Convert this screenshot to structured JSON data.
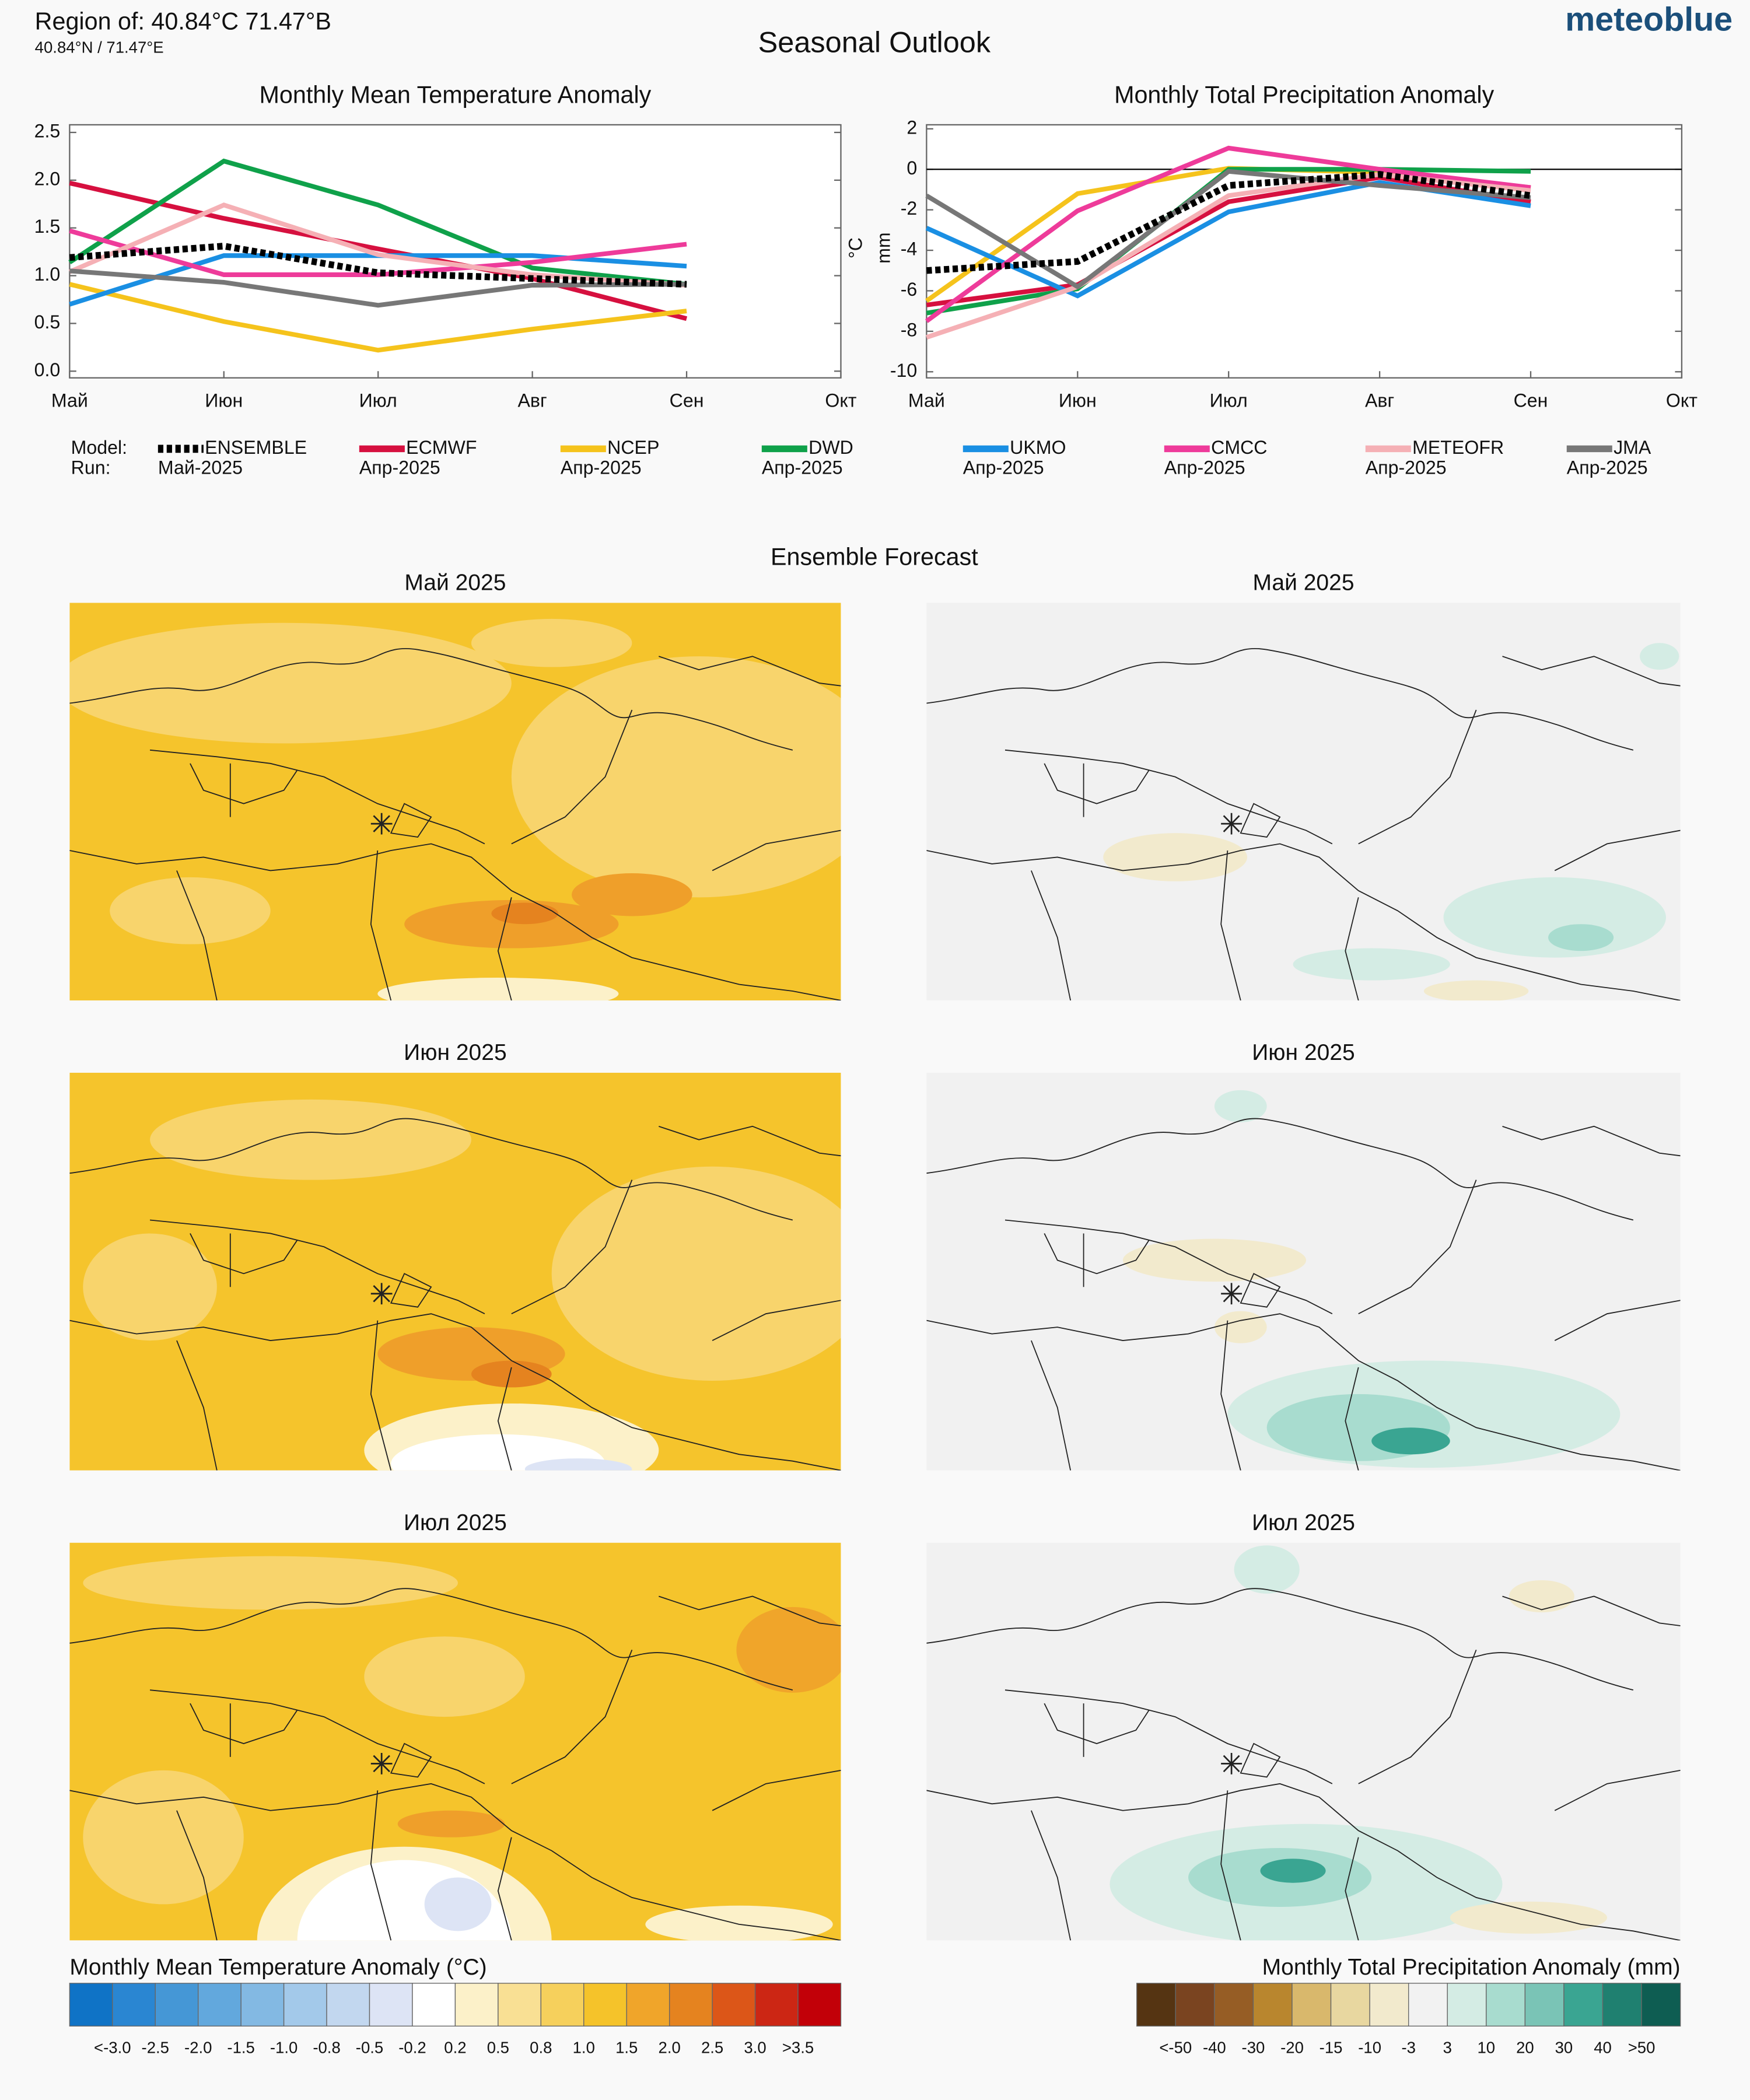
{
  "header": {
    "region": "Region of: 40.84°C 71.47°B",
    "coords": "40.84°N / 71.47°E",
    "title": "Seasonal Outlook",
    "brand": "meteoblue"
  },
  "legend": {
    "model_label": "Model:",
    "run_label": "Run:"
  },
  "chart_data": [
    {
      "type": "line",
      "title": "Monthly Mean Temperature Anomaly",
      "ylabel": "°C",
      "categories": [
        "Май",
        "Июн",
        "Июл",
        "Авг",
        "Сен",
        "Окт"
      ],
      "ylim": [
        -0.07,
        2.58
      ],
      "yticks": [
        {
          "value": 0,
          "label": "0.0"
        },
        0.5,
        {
          "value": 1,
          "label": "1.0"
        },
        1.5,
        {
          "value": 2,
          "label": "2.0"
        },
        2.5
      ],
      "grid": false,
      "series": [
        {
          "name": "ENSEMBLE",
          "run": "Май-2025",
          "color": "#000000",
          "dashed": true,
          "values": [
            1.19,
            1.31,
            1.03,
            0.97,
            0.91,
            null
          ]
        },
        {
          "name": "ECMWF",
          "run": "Апр-2025",
          "color": "#d6103f",
          "values": [
            1.97,
            1.6,
            1.28,
            0.97,
            0.55,
            null
          ]
        },
        {
          "name": "NCEP",
          "run": "Апр-2025",
          "color": "#f5c31c",
          "values": [
            0.91,
            0.52,
            0.22,
            0.44,
            0.63,
            null
          ]
        },
        {
          "name": "DWD",
          "run": "Апр-2025",
          "color": "#0fa14a",
          "values": [
            1.14,
            2.2,
            1.74,
            1.08,
            0.91,
            null
          ]
        },
        {
          "name": "UKMO",
          "run": "Апр-2025",
          "color": "#1a8fe3",
          "values": [
            0.7,
            1.21,
            1.21,
            1.21,
            1.1,
            null
          ]
        },
        {
          "name": "CMCC",
          "run": "Апр-2025",
          "color": "#ee3b9a",
          "values": [
            1.47,
            1.01,
            1.01,
            1.14,
            1.33,
            null
          ]
        },
        {
          "name": "METEOFR",
          "run": "Апр-2025",
          "color": "#f5b0b5",
          "values": [
            1.04,
            1.74,
            1.22,
            1.01,
            0.9,
            null
          ]
        },
        {
          "name": "JMA",
          "run": "Апр-2025",
          "color": "#777777",
          "values": [
            1.05,
            0.93,
            0.69,
            0.9,
            0.91,
            null
          ]
        }
      ]
    },
    {
      "type": "line",
      "title": "Monthly Total Precipitation Anomaly",
      "ylabel": "mm",
      "categories": [
        "Май",
        "Июн",
        "Июл",
        "Авг",
        "Сен",
        "Окт"
      ],
      "ylim": [
        -10.3,
        2.2
      ],
      "yticks": [
        2,
        0,
        -2,
        -4,
        -6,
        -8,
        -10
      ],
      "grid": false,
      "zero_line": true,
      "series": [
        {
          "name": "ENSEMBLE",
          "color": "#000000",
          "dashed": true,
          "values": [
            -5.0,
            -4.55,
            -0.8,
            -0.25,
            -1.3,
            null
          ]
        },
        {
          "name": "ECMWF",
          "color": "#d6103f",
          "values": [
            -6.7,
            -5.7,
            -1.6,
            -0.4,
            -1.6,
            null
          ]
        },
        {
          "name": "NCEP",
          "color": "#f5c31c",
          "values": [
            -6.5,
            -1.2,
            0.05,
            -0.15,
            -0.9,
            null
          ]
        },
        {
          "name": "DWD",
          "color": "#0fa14a",
          "values": [
            -7.1,
            -5.9,
            0,
            0,
            -0.1,
            null
          ]
        },
        {
          "name": "UKMO",
          "color": "#1a8fe3",
          "values": [
            -2.9,
            -6.25,
            -2.1,
            -0.65,
            -1.8,
            null
          ]
        },
        {
          "name": "CMCC",
          "color": "#ee3b9a",
          "values": [
            -7.5,
            -2.05,
            1.05,
            0,
            -0.9,
            null
          ]
        },
        {
          "name": "METEOFR",
          "color": "#f5b0b5",
          "values": [
            -8.3,
            -5.8,
            -1.3,
            -0.25,
            -1.05,
            null
          ]
        },
        {
          "name": "JMA",
          "color": "#777777",
          "values": [
            -1.3,
            -5.8,
            -0.1,
            -0.8,
            -1.4,
            null
          ]
        }
      ]
    }
  ],
  "ensemble_title": "Ensemble Forecast",
  "maps": {
    "temperature": [
      "Май 2025",
      "Июн 2025",
      "Июл 2025"
    ],
    "precipitation": [
      "Май 2025",
      "Июн 2025",
      "Июл 2025"
    ]
  },
  "colorbars": [
    {
      "title": "Monthly Mean Temperature Anomaly (°C)",
      "labels": [
        "<-3.0",
        "-2.5",
        "-2.0",
        "-1.5",
        "-1.0",
        "-0.8",
        "-0.5",
        "-0.2",
        "0.2",
        "0.5",
        "0.8",
        "1.0",
        "1.5",
        "2.0",
        "2.5",
        "3.0",
        ">3.5"
      ],
      "colors": [
        "#0f73c6",
        "#2a86d2",
        "#4597d6",
        "#62a8dd",
        "#83b9e3",
        "#a3c9ea",
        "#c2d7ef",
        "#dde4f5",
        "#ffffff",
        "#fcf1c9",
        "#f9e094",
        "#f6d05c",
        "#f5c32a",
        "#f0a52a",
        "#e5831f",
        "#dc5618",
        "#cc2614",
        "#c20008"
      ]
    },
    {
      "title": "Monthly Total Precipitation Anomaly (mm)",
      "labels": [
        "<-50",
        "-40",
        "-30",
        "-20",
        "-15",
        "-10",
        "-3",
        "3",
        "10",
        "20",
        "30",
        "40",
        ">50"
      ],
      "colors": [
        "#553412",
        "#7a4420",
        "#965d25",
        "#b9862e",
        "#d9b86c",
        "#e8d7a0",
        "#f2eacd",
        "#f2f2f2",
        "#d4ece4",
        "#a8dccf",
        "#7ac4b6",
        "#3aa592",
        "#1f8070",
        "#0e5d52"
      ]
    }
  ]
}
